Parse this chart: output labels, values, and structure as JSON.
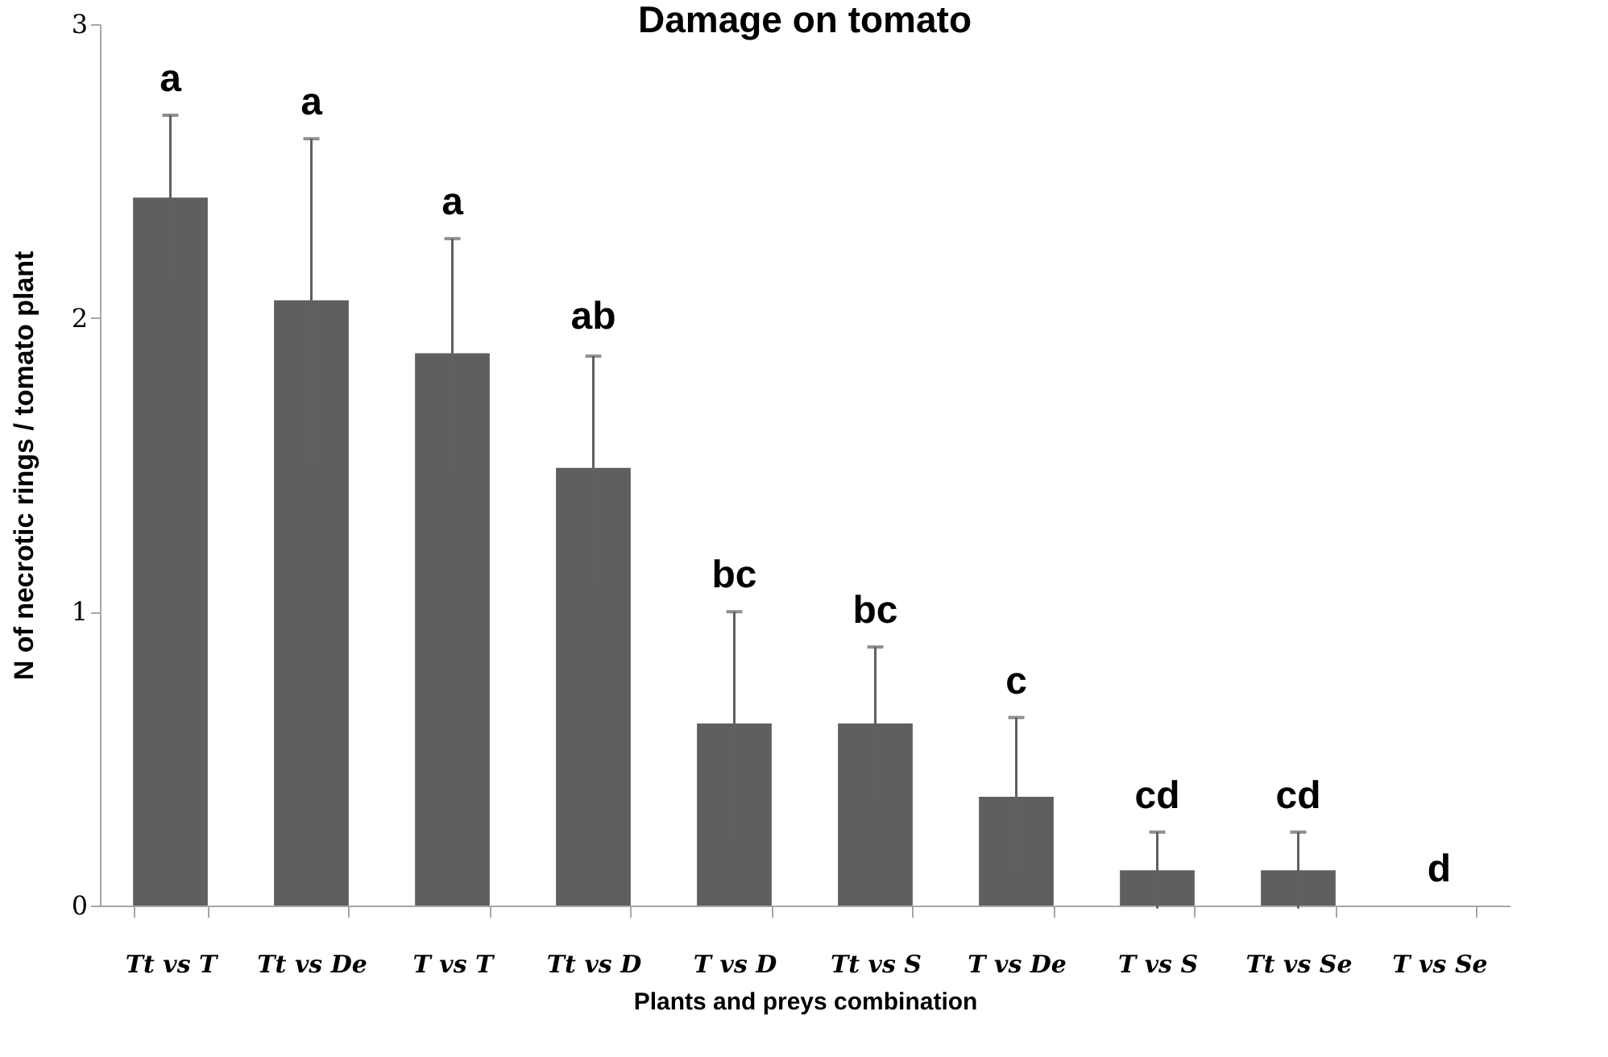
{
  "chart_data": {
    "type": "bar",
    "title": "Damage on tomato",
    "xlabel": "Plants and preys combination",
    "ylabel": "N of necrotic rings / tomato plant",
    "categories": [
      "Tt vs T",
      "Tt vs De",
      "T vs T",
      "Tt vs D",
      "T vs D",
      "Tt vs S",
      "T vs De",
      "T vs S",
      "Tt vs Se",
      "T vs Se"
    ],
    "values": [
      2.41,
      2.06,
      1.88,
      1.49,
      0.62,
      0.62,
      0.37,
      0.12,
      0.12,
      0
    ],
    "errors": [
      0.28,
      0.55,
      0.39,
      0.38,
      0.38,
      0.26,
      0.27,
      0.13,
      0.13,
      null
    ],
    "color": "#5f5f5f",
    "ylim": [
      0,
      3
    ],
    "yticks": [
      0,
      1,
      2,
      3
    ],
    "grid": false,
    "annotations": [
      {
        "text": "a",
        "x": "Tt vs T",
        "y": 2.69
      },
      {
        "text": "a",
        "x": "Tt vs De",
        "y": 2.61
      },
      {
        "text": "a",
        "x": "T vs T",
        "y": 2.27
      },
      {
        "text": "ab",
        "x": "Tt vs D",
        "y": 1.88
      },
      {
        "text": "bc",
        "x": "T vs D",
        "y": 1.0
      },
      {
        "text": "bc",
        "x": "Tt vs S",
        "y": 0.88
      },
      {
        "text": "c",
        "x": "T vs De",
        "y": 0.64
      },
      {
        "text": "cd",
        "x": "T vs S",
        "y": 0.25
      },
      {
        "text": "cd",
        "x": "Tt vs Se",
        "y": 0.25
      },
      {
        "text": "d",
        "x": "T vs Se",
        "y": 0.0
      }
    ]
  }
}
